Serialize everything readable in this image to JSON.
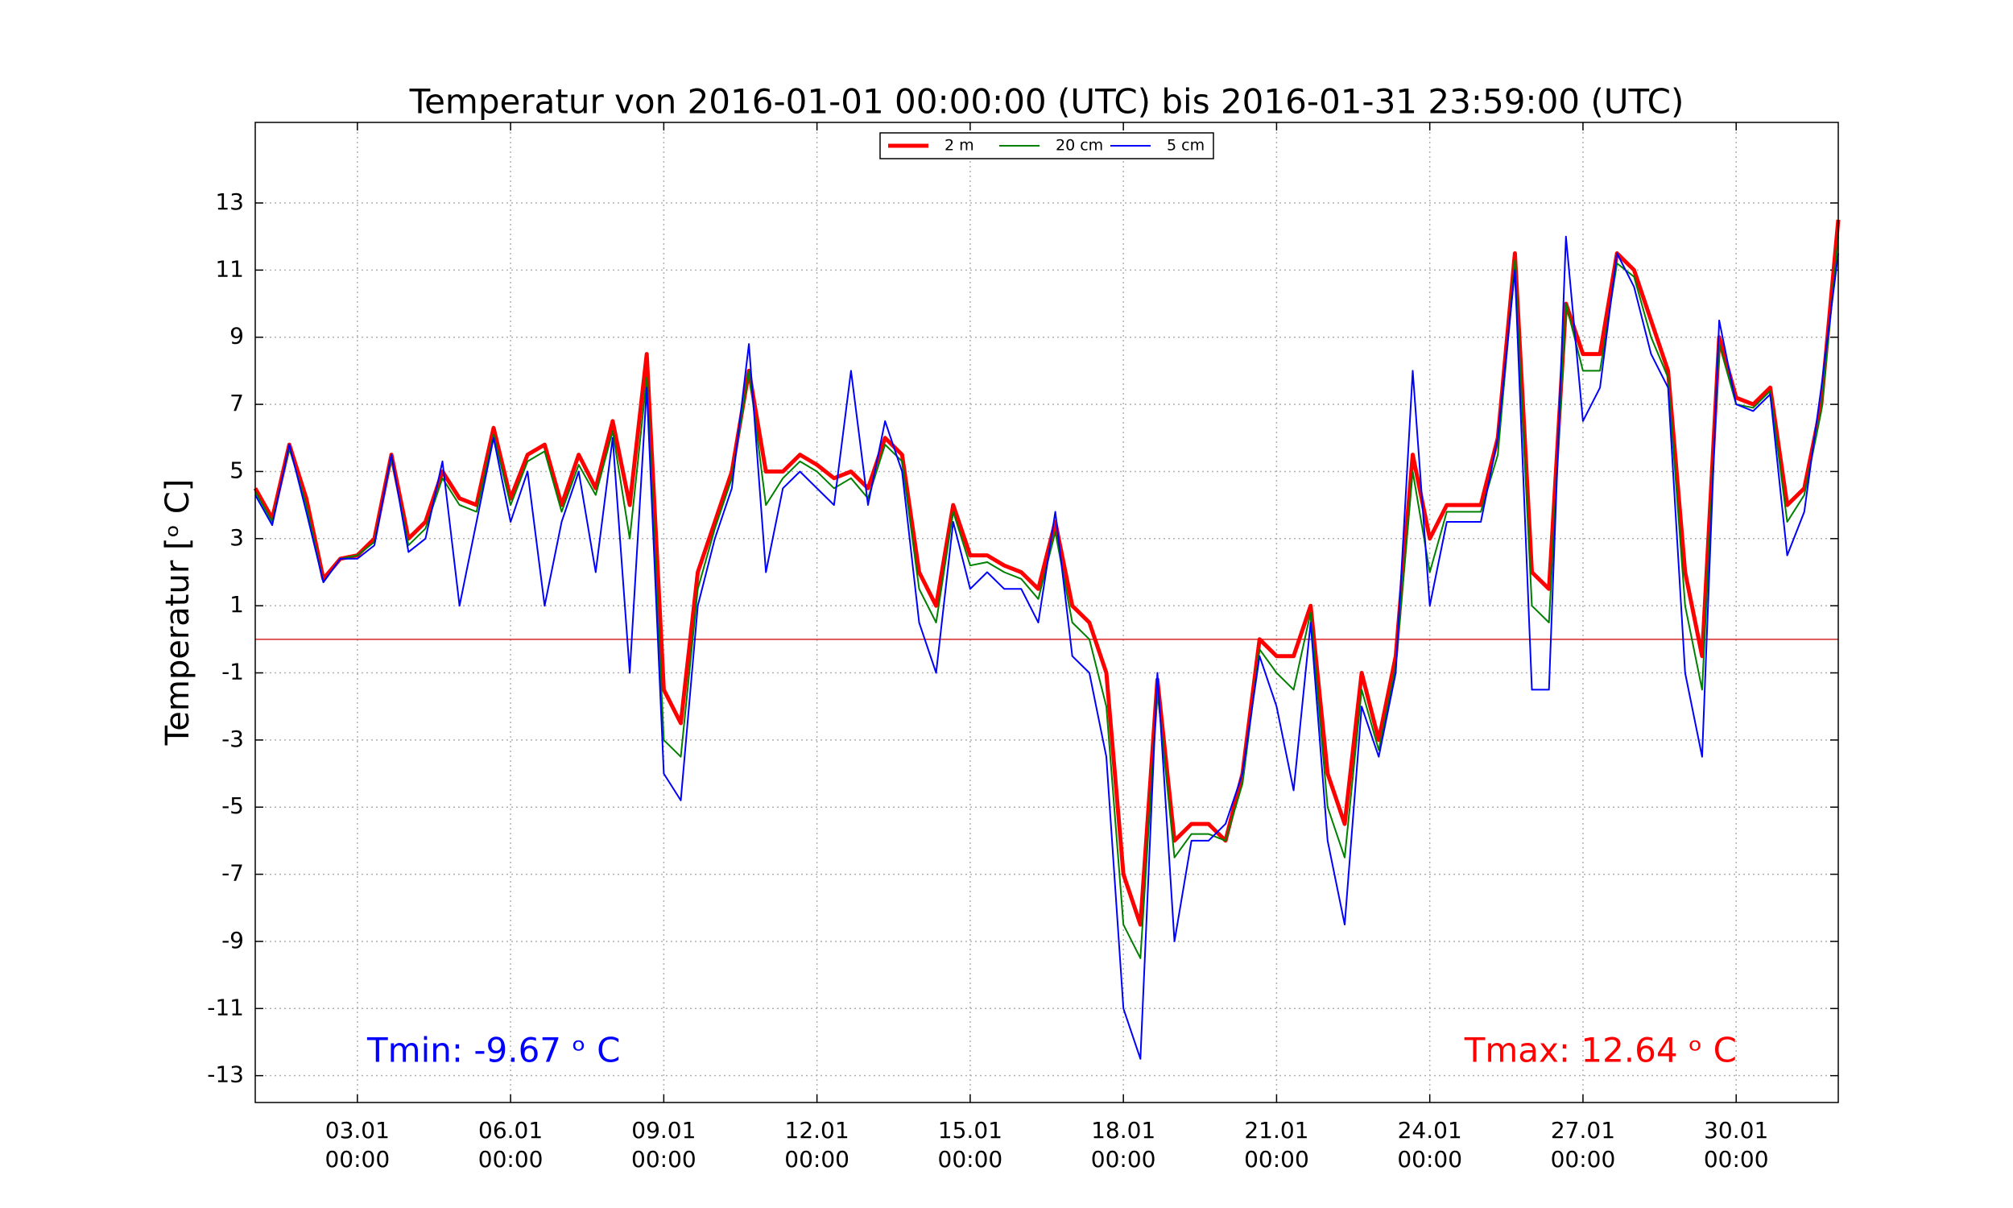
{
  "chart_data": {
    "type": "line",
    "title": "Temperatur von 2016-01-01 00:00:00 (UTC) bis 2016-01-31 23:59:00 (UTC)",
    "ylabel": "Temperatur [ᵒ C]",
    "x": [
      "2016-01-01 00:00",
      "2016-01-01 08:00",
      "2016-01-01 16:00",
      "2016-01-02 00:00",
      "2016-01-02 08:00",
      "2016-01-02 16:00",
      "2016-01-03 00:00",
      "2016-01-03 08:00",
      "2016-01-03 16:00",
      "2016-01-04 00:00",
      "2016-01-04 08:00",
      "2016-01-04 16:00",
      "2016-01-05 00:00",
      "2016-01-05 08:00",
      "2016-01-05 16:00",
      "2016-01-06 00:00",
      "2016-01-06 08:00",
      "2016-01-06 16:00",
      "2016-01-07 00:00",
      "2016-01-07 08:00",
      "2016-01-07 16:00",
      "2016-01-08 00:00",
      "2016-01-08 08:00",
      "2016-01-08 16:00",
      "2016-01-09 00:00",
      "2016-01-09 08:00",
      "2016-01-09 16:00",
      "2016-01-10 00:00",
      "2016-01-10 08:00",
      "2016-01-10 16:00",
      "2016-01-11 00:00",
      "2016-01-11 08:00",
      "2016-01-11 16:00",
      "2016-01-12 00:00",
      "2016-01-12 08:00",
      "2016-01-12 16:00",
      "2016-01-13 00:00",
      "2016-01-13 08:00",
      "2016-01-13 16:00",
      "2016-01-14 00:00",
      "2016-01-14 08:00",
      "2016-01-14 16:00",
      "2016-01-15 00:00",
      "2016-01-15 08:00",
      "2016-01-15 16:00",
      "2016-01-16 00:00",
      "2016-01-16 08:00",
      "2016-01-16 16:00",
      "2016-01-17 00:00",
      "2016-01-17 08:00",
      "2016-01-17 16:00",
      "2016-01-18 00:00",
      "2016-01-18 08:00",
      "2016-01-18 16:00",
      "2016-01-19 00:00",
      "2016-01-19 08:00",
      "2016-01-19 16:00",
      "2016-01-20 00:00",
      "2016-01-20 08:00",
      "2016-01-20 16:00",
      "2016-01-21 00:00",
      "2016-01-21 08:00",
      "2016-01-21 16:00",
      "2016-01-22 00:00",
      "2016-01-22 08:00",
      "2016-01-22 16:00",
      "2016-01-23 00:00",
      "2016-01-23 08:00",
      "2016-01-23 16:00",
      "2016-01-24 00:00",
      "2016-01-24 08:00",
      "2016-01-24 16:00",
      "2016-01-25 00:00",
      "2016-01-25 08:00",
      "2016-01-25 16:00",
      "2016-01-26 00:00",
      "2016-01-26 08:00",
      "2016-01-26 16:00",
      "2016-01-27 00:00",
      "2016-01-27 08:00",
      "2016-01-27 16:00",
      "2016-01-28 00:00",
      "2016-01-28 08:00",
      "2016-01-28 16:00",
      "2016-01-29 00:00",
      "2016-01-29 08:00",
      "2016-01-29 16:00",
      "2016-01-30 00:00",
      "2016-01-30 08:00",
      "2016-01-30 16:00",
      "2016-01-31 00:00",
      "2016-01-31 08:00",
      "2016-01-31 16:00",
      "2016-01-31 23:59"
    ],
    "series": [
      {
        "name": "2 m",
        "color": "#ff0000",
        "values": [
          4.5,
          3.6,
          5.8,
          4.2,
          1.8,
          2.4,
          2.5,
          3.0,
          5.5,
          3.0,
          3.5,
          5.0,
          4.2,
          4.0,
          6.3,
          4.2,
          5.5,
          5.8,
          4.0,
          5.5,
          4.5,
          6.5,
          4.0,
          8.5,
          -1.5,
          -2.5,
          2.0,
          3.5,
          5.0,
          8.0,
          5.0,
          5.0,
          5.5,
          5.2,
          4.8,
          5.0,
          4.5,
          6.0,
          5.5,
          2.0,
          1.0,
          4.0,
          2.5,
          2.5,
          2.2,
          2.0,
          1.5,
          3.5,
          1.0,
          0.5,
          -1.0,
          -7.0,
          -8.5,
          -1.2,
          -6.0,
          -5.5,
          -5.5,
          -6.0,
          -4.0,
          0.0,
          -0.5,
          -0.5,
          1.0,
          -4.0,
          -5.5,
          -1.0,
          -3.0,
          -0.5,
          5.5,
          3.0,
          4.0,
          4.0,
          4.0,
          6.0,
          11.5,
          2.0,
          1.5,
          10.0,
          8.5,
          8.5,
          11.5,
          11.0,
          9.5,
          8.0,
          2.0,
          -0.5,
          9.0,
          7.2,
          7.0,
          7.5,
          4.0,
          4.5,
          7.0,
          12.5
        ]
      },
      {
        "name": "20 cm",
        "color": "#008000",
        "values": [
          4.4,
          3.5,
          5.7,
          4.0,
          1.7,
          2.4,
          2.5,
          2.9,
          5.4,
          2.8,
          3.3,
          4.8,
          4.0,
          3.8,
          6.1,
          4.0,
          5.3,
          5.6,
          3.8,
          5.2,
          4.3,
          6.2,
          3.0,
          7.8,
          -3.0,
          -3.5,
          1.5,
          3.3,
          4.8,
          8.0,
          4.0,
          4.8,
          5.3,
          5.0,
          4.5,
          4.8,
          4.2,
          5.8,
          5.3,
          1.5,
          0.5,
          3.8,
          2.2,
          2.3,
          2.0,
          1.8,
          1.2,
          3.2,
          0.5,
          0.0,
          -2.0,
          -8.5,
          -9.5,
          -1.5,
          -6.5,
          -5.8,
          -5.8,
          -6.0,
          -4.3,
          -0.3,
          -1.0,
          -1.5,
          0.8,
          -5.0,
          -6.5,
          -1.5,
          -3.3,
          -0.8,
          5.0,
          2.0,
          3.8,
          3.8,
          3.8,
          5.5,
          11.3,
          1.0,
          0.5,
          10.0,
          8.0,
          8.0,
          11.2,
          10.8,
          9.0,
          7.8,
          1.0,
          -1.5,
          8.8,
          7.0,
          6.9,
          7.4,
          3.5,
          4.3,
          6.8,
          12.0
        ]
      },
      {
        "name": "5 cm",
        "color": "#0000ff",
        "values": [
          4.3,
          3.4,
          5.8,
          3.8,
          1.7,
          2.4,
          2.4,
          2.8,
          5.5,
          2.6,
          3.0,
          5.3,
          1.0,
          3.5,
          6.0,
          3.5,
          5.0,
          1.0,
          3.5,
          5.0,
          2.0,
          6.0,
          -1.0,
          7.5,
          -4.0,
          -4.8,
          1.0,
          3.0,
          4.5,
          8.8,
          2.0,
          4.5,
          5.0,
          4.5,
          4.0,
          8.0,
          4.0,
          6.5,
          5.0,
          0.5,
          -1.0,
          3.5,
          1.5,
          2.0,
          1.5,
          1.5,
          0.5,
          3.8,
          -0.5,
          -1.0,
          -3.5,
          -11.0,
          -12.5,
          -1.0,
          -9.0,
          -6.0,
          -6.0,
          -5.5,
          -4.0,
          -0.5,
          -2.0,
          -4.5,
          0.5,
          -6.0,
          -8.5,
          -2.0,
          -3.5,
          -1.0,
          8.0,
          1.0,
          3.5,
          3.5,
          3.5,
          6.0,
          11.0,
          -1.5,
          -1.5,
          12.0,
          6.5,
          7.5,
          11.5,
          10.5,
          8.5,
          7.5,
          -1.0,
          -3.5,
          9.5,
          7.0,
          6.8,
          7.3,
          2.5,
          3.8,
          7.5,
          11.5
        ]
      }
    ],
    "xlim": [
      "2016-01-01 00:00",
      "2016-01-31 23:59"
    ],
    "xticks": [
      {
        "value": "2016-01-03 00:00",
        "label": [
          "03.01",
          "00:00"
        ]
      },
      {
        "value": "2016-01-06 00:00",
        "label": [
          "06.01",
          "00:00"
        ]
      },
      {
        "value": "2016-01-09 00:00",
        "label": [
          "09.01",
          "00:00"
        ]
      },
      {
        "value": "2016-01-12 00:00",
        "label": [
          "12.01",
          "00:00"
        ]
      },
      {
        "value": "2016-01-15 00:00",
        "label": [
          "15.01",
          "00:00"
        ]
      },
      {
        "value": "2016-01-18 00:00",
        "label": [
          "18.01",
          "00:00"
        ]
      },
      {
        "value": "2016-01-21 00:00",
        "label": [
          "21.01",
          "00:00"
        ]
      },
      {
        "value": "2016-01-24 00:00",
        "label": [
          "24.01",
          "00:00"
        ]
      },
      {
        "value": "2016-01-27 00:00",
        "label": [
          "27.01",
          "00:00"
        ]
      },
      {
        "value": "2016-01-30 00:00",
        "label": [
          "30.01",
          "00:00"
        ]
      }
    ],
    "ylim": [
      -13.8,
      15.4
    ],
    "yticks": [
      -13,
      -11,
      -9,
      -7,
      -5,
      -3,
      -1,
      1,
      3,
      5,
      7,
      9,
      11,
      13
    ],
    "grid": true,
    "hline": {
      "value": 0,
      "color": "#d62728"
    },
    "legend": "upper center",
    "annotations": [
      {
        "text": "Tmin: -9.67 ᵒ C",
        "color": "#0000ff"
      },
      {
        "text": "Tmax: 12.64 ᵒ C",
        "color": "#ff0000"
      }
    ]
  }
}
